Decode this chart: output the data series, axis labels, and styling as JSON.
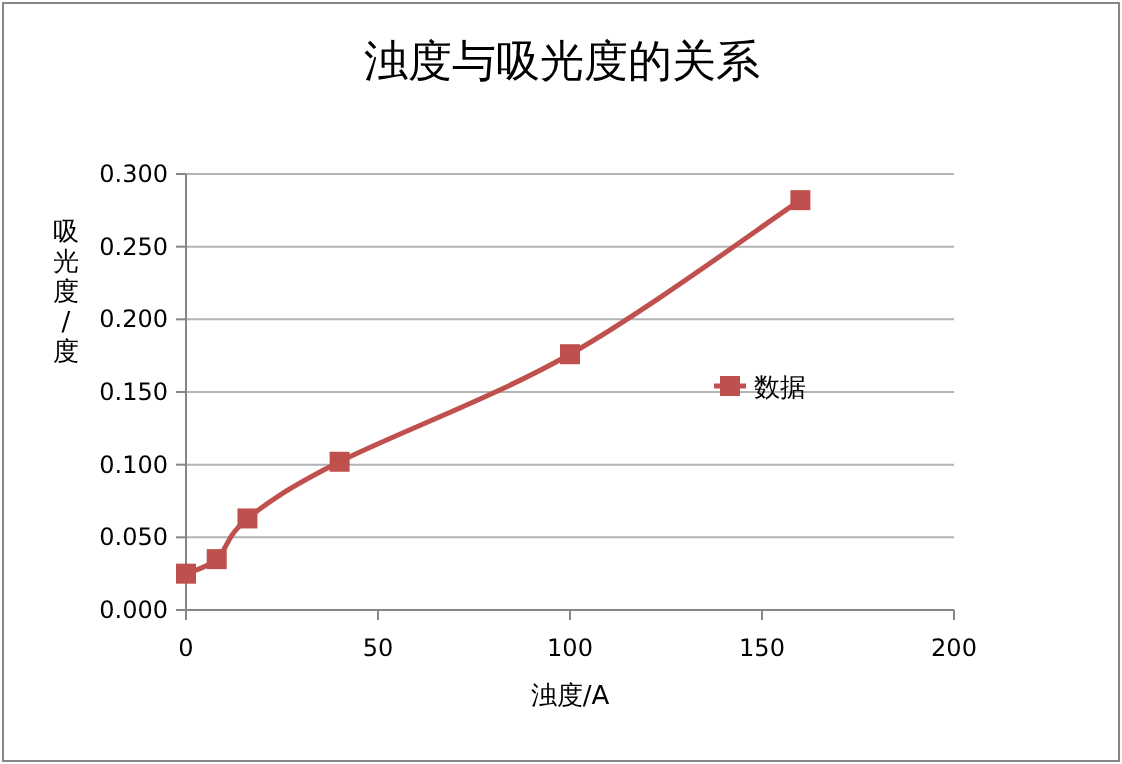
{
  "chart_data": {
    "type": "line",
    "title": "浊度与吸光度的关系",
    "xlabel": "浊度/A",
    "ylabel": "吸光度/度",
    "series": [
      {
        "name": "数据",
        "color": "#c0504d",
        "x": [
          0,
          8,
          16,
          40,
          100,
          160
        ],
        "values": [
          0.025,
          0.035,
          0.063,
          0.102,
          0.176,
          0.282
        ]
      }
    ],
    "xlim": [
      0,
      200
    ],
    "xticks": [
      0,
      50,
      100,
      150,
      200
    ],
    "ylim": [
      0,
      0.3
    ],
    "yticks": [
      {
        "value": 0,
        "label": "0.000"
      },
      {
        "value": 0.05,
        "label": "0.050"
      },
      {
        "value": 0.1,
        "label": "0.100"
      },
      {
        "value": 0.15,
        "label": "0.150"
      },
      {
        "value": 0.2,
        "label": "0.200"
      },
      {
        "value": 0.25,
        "label": "0.250"
      },
      {
        "value": 0.3,
        "label": "0.300"
      }
    ],
    "grid": "y",
    "legend": "right",
    "marker": "square",
    "line_style": "solid"
  }
}
